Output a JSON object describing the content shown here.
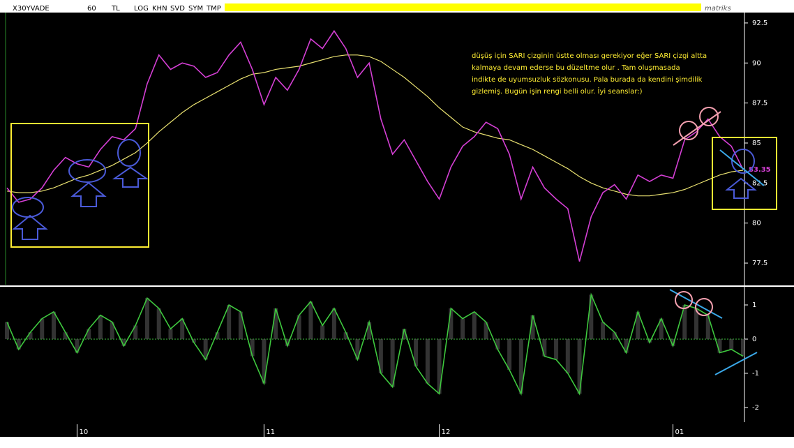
{
  "toolbar": {
    "symbol": "X30YVADE",
    "period": "60",
    "currency": "TL",
    "buttons": [
      "LOG",
      "KHN",
      "SVD",
      "SYM",
      "TMP"
    ],
    "brand": "matriks"
  },
  "chart_data": [
    {
      "type": "line",
      "annotation": [
        "düşüş için SARI çizginin üstte olması gerekiyor eğer SARI çizgi altta",
        "kalmaya devam ederse bu düzeltme olur . Tam oluşmasada",
        "indikte de uyumsuzluk sözkonusu. Pala burada da kendini şimdilik",
        "gizlemiş. Bugün işin rengi belli olur. İyi seanslar:)"
      ],
      "categories": [
        null,
        null,
        null,
        null,
        null,
        null,
        "10",
        null,
        null,
        null,
        null,
        null,
        null,
        null,
        null,
        null,
        null,
        null,
        null,
        null,
        null,
        null,
        "11",
        null,
        null,
        null,
        null,
        null,
        null,
        null,
        null,
        null,
        null,
        null,
        null,
        null,
        null,
        "12",
        null,
        null,
        null,
        null,
        null,
        null,
        null,
        null,
        null,
        null,
        null,
        null,
        null,
        null,
        null,
        null,
        null,
        null,
        null,
        "01",
        null,
        null,
        null,
        null,
        null,
        null
      ],
      "series": [
        {
          "color": "#d43fd4",
          "values": [
            82.2,
            81.3,
            81.5,
            82.2,
            83.3,
            84.1,
            83.7,
            83.5,
            84.6,
            85.4,
            85.2,
            85.9,
            88.7,
            90.5,
            89.6,
            90.0,
            89.8,
            89.1,
            89.4,
            90.5,
            91.3,
            89.6,
            87.4,
            89.1,
            88.3,
            89.6,
            91.5,
            90.9,
            92.0,
            90.9,
            89.1,
            90.0,
            86.5,
            84.3,
            85.2,
            83.9,
            82.6,
            81.5,
            83.5,
            84.8,
            85.4,
            86.3,
            85.9,
            84.3,
            81.5,
            83.5,
            82.2,
            81.5,
            80.9,
            77.6,
            80.4,
            81.9,
            82.4,
            81.5,
            83.0,
            82.6,
            83.0,
            82.8,
            85.2,
            85.7,
            86.5,
            85.4,
            84.8,
            83.35
          ]
        },
        {
          "color": "#e8e070",
          "values": [
            82.0,
            81.9,
            81.9,
            82.0,
            82.2,
            82.5,
            82.8,
            83.0,
            83.3,
            83.6,
            84.0,
            84.4,
            85.0,
            85.7,
            86.3,
            86.9,
            87.4,
            87.8,
            88.2,
            88.6,
            89.0,
            89.3,
            89.4,
            89.6,
            89.7,
            89.8,
            90.0,
            90.2,
            90.4,
            90.5,
            90.5,
            90.4,
            90.1,
            89.6,
            89.1,
            88.5,
            87.9,
            87.2,
            86.6,
            86.0,
            85.7,
            85.5,
            85.3,
            85.2,
            84.9,
            84.6,
            84.2,
            83.8,
            83.4,
            82.9,
            82.5,
            82.2,
            82.0,
            81.8,
            81.7,
            81.7,
            81.8,
            81.9,
            82.1,
            82.4,
            82.7,
            83.0,
            83.2,
            83.3
          ]
        }
      ],
      "ylim": [
        76.15,
        93.15
      ],
      "yticks": [
        92.5,
        90,
        87.5,
        85,
        82.5,
        80,
        77.5
      ]
    },
    {
      "type": "line",
      "series": [
        {
          "color": "#3ec83e",
          "values": [
            0.5,
            -0.3,
            0.2,
            0.6,
            0.8,
            0.2,
            -0.4,
            0.3,
            0.7,
            0.5,
            -0.2,
            0.4,
            1.2,
            0.9,
            0.3,
            0.6,
            -0.1,
            -0.6,
            0.2,
            1.0,
            0.8,
            -0.5,
            -1.3,
            0.9,
            -0.2,
            0.7,
            1.1,
            0.4,
            0.9,
            0.2,
            -0.6,
            0.5,
            -1.0,
            -1.4,
            0.3,
            -0.8,
            -1.3,
            -1.6,
            0.9,
            0.6,
            0.8,
            0.5,
            -0.3,
            -0.9,
            -1.6,
            0.7,
            -0.5,
            -0.6,
            -1.0,
            -1.6,
            1.3,
            0.5,
            0.2,
            -0.4,
            0.8,
            -0.1,
            0.6,
            -0.2,
            1.0,
            0.9,
            0.7,
            -0.4,
            -0.3,
            -0.5
          ]
        }
      ],
      "ylim": [
        -2.43,
        1.49
      ],
      "yticks": [
        1,
        0,
        -1,
        -2
      ]
    }
  ]
}
